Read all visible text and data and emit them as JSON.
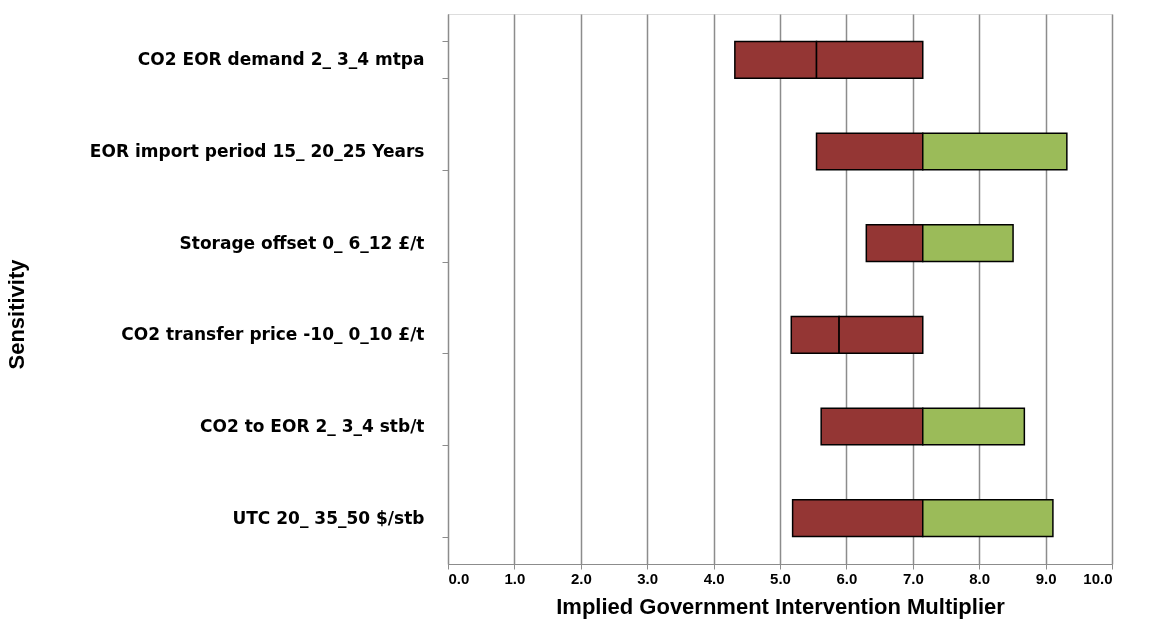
{
  "chart_data": {
    "type": "bar",
    "orientation": "horizontal",
    "xlabel": "Implied Government Intervention Multiplier",
    "ylabel": "Sensitivity",
    "categories": [
      "CO2 EOR demand 2_ 3_4 mtpa",
      "EOR import period 15_ 20_25 Years",
      "Storage offset 0_ 6_12 £/t",
      "CO2 transfer price -10_ 0_10 £/t",
      "CO2 to EOR 2_ 3_4 stb/t",
      "UTC 20_ 35_50 $/stb"
    ],
    "series": [
      {
        "color": "#943634",
        "base": [
          4.32,
          5.55,
          6.3,
          5.17,
          5.62,
          5.19
        ],
        "values": [
          1.23,
          1.6,
          0.85,
          0.72,
          1.53,
          1.96
        ]
      },
      {
        "colors": [
          "#943634",
          "#9bbb59",
          "#9bbb59",
          "#943634",
          "#9bbb59",
          "#9bbb59"
        ],
        "base": [
          5.55,
          7.15,
          7.15,
          5.89,
          7.15,
          7.15
        ],
        "values": [
          1.6,
          2.17,
          1.36,
          1.26,
          1.53,
          1.96
        ]
      }
    ],
    "xlim": [
      0,
      10
    ],
    "xticks": [
      {
        "value": 0,
        "label": "0.0"
      },
      {
        "value": 1,
        "label": "1.0"
      },
      {
        "value": 2,
        "label": "2.0"
      },
      {
        "value": 3,
        "label": "3.0"
      },
      {
        "value": 4,
        "label": "4.0"
      },
      {
        "value": 5,
        "label": "5.0"
      },
      {
        "value": 6,
        "label": "6.0"
      },
      {
        "value": 7,
        "label": "7.0"
      },
      {
        "value": 8,
        "label": "8.0"
      },
      {
        "value": 9,
        "label": "9.0"
      },
      {
        "value": 10,
        "label": "10.0"
      }
    ],
    "grid": "x"
  }
}
